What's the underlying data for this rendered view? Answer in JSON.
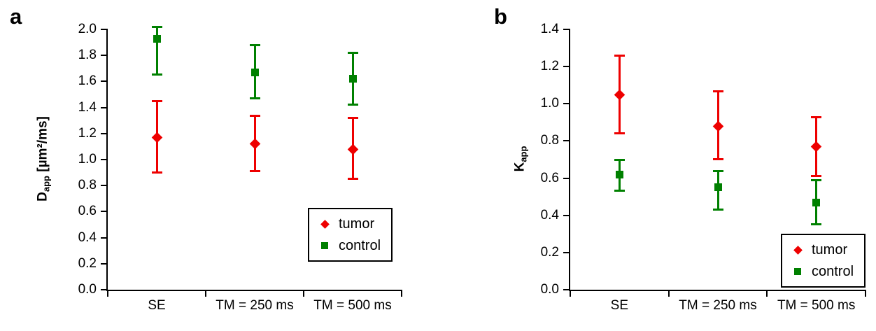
{
  "figure": {
    "background": "#ffffff",
    "axis_color": "#000000",
    "tumor_color": "#ee0000",
    "control_color": "#008000"
  },
  "chart_data": [
    {
      "panel_label": "a",
      "type": "scatter",
      "categories": [
        "SE",
        "TM = 250 ms",
        "TM = 500 ms"
      ],
      "ylabel_text": "Dapp [µm²/ms]",
      "ylabel_parts": [
        {
          "t": "D"
        },
        {
          "t": "app",
          "sub": true
        },
        {
          "t": " [µm²/ms]"
        }
      ],
      "ylim": [
        0.0,
        2.0
      ],
      "ytick_step": 0.2,
      "ytick_labels": [
        "0.0",
        "0.2",
        "0.4",
        "0.6",
        "0.8",
        "1.0",
        "1.2",
        "1.4",
        "1.6",
        "1.8",
        "2.0"
      ],
      "grid": false,
      "legend_position": "bottom-right",
      "series": [
        {
          "name": "tumor",
          "marker": "diamond",
          "color": "#ee0000",
          "values": [
            1.17,
            1.12,
            1.08
          ],
          "err_low": [
            0.9,
            0.91,
            0.85
          ],
          "err_high": [
            1.45,
            1.34,
            1.32
          ]
        },
        {
          "name": "control",
          "marker": "square",
          "color": "#008000",
          "values": [
            1.93,
            1.67,
            1.62
          ],
          "err_low": [
            1.65,
            1.47,
            1.42
          ],
          "err_high": [
            2.02,
            1.88,
            1.82
          ]
        }
      ]
    },
    {
      "panel_label": "b",
      "type": "scatter",
      "categories": [
        "SE",
        "TM = 250 ms",
        "TM = 500 ms"
      ],
      "ylabel_text": "Kapp",
      "ylabel_parts": [
        {
          "t": "K"
        },
        {
          "t": "app",
          "sub": true
        }
      ],
      "ylim": [
        0.0,
        1.4
      ],
      "ytick_step": 0.2,
      "ytick_labels": [
        "0.0",
        "0.2",
        "0.4",
        "0.6",
        "0.8",
        "1.0",
        "1.2",
        "1.4"
      ],
      "grid": false,
      "legend_position": "bottom-right",
      "series": [
        {
          "name": "tumor",
          "marker": "diamond",
          "color": "#ee0000",
          "values": [
            1.05,
            0.88,
            0.77
          ],
          "err_low": [
            0.84,
            0.7,
            0.61
          ],
          "err_high": [
            1.26,
            1.07,
            0.93
          ]
        },
        {
          "name": "control",
          "marker": "square",
          "color": "#008000",
          "values": [
            0.62,
            0.55,
            0.47
          ],
          "err_low": [
            0.53,
            0.43,
            0.35
          ],
          "err_high": [
            0.7,
            0.64,
            0.59
          ]
        }
      ]
    }
  ]
}
